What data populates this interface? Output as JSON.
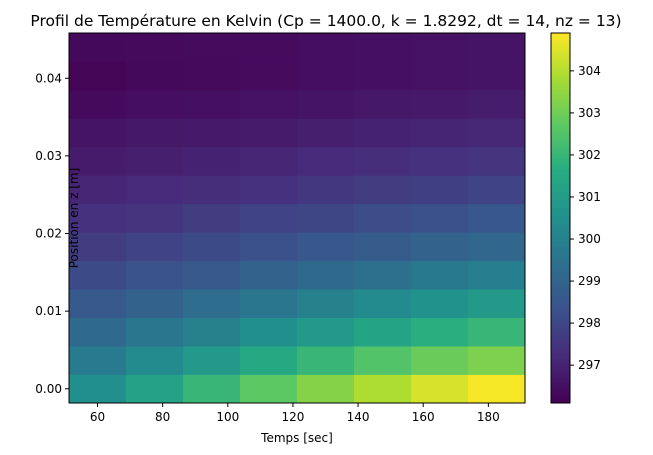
{
  "chart_data": {
    "type": "heatmap",
    "title": "Profil de Température en Kelvin (Cp = 1400.0, k = 1.8292, dt = 14, nz = 13)",
    "xlabel": "Temps [sec]",
    "ylabel": "Position en z [m]",
    "x": [
      60,
      77.5,
      95,
      112.5,
      130,
      147.5,
      165,
      182.5
    ],
    "y": [
      0.0,
      0.00367,
      0.00733,
      0.011,
      0.01467,
      0.01833,
      0.022,
      0.02567,
      0.02933,
      0.033,
      0.03667,
      0.04033,
      0.044
    ],
    "x_ticks": [
      60,
      80,
      100,
      120,
      140,
      160,
      180
    ],
    "y_ticks": [
      0.0,
      0.01,
      0.02,
      0.03,
      0.04
    ],
    "y_tick_labels": [
      "0.00",
      "0.01",
      "0.02",
      "0.03",
      "0.04"
    ],
    "xlim": [
      51.25,
      191.25
    ],
    "ylim": [
      -0.001833,
      0.045833
    ],
    "colormap": "viridis",
    "colorbar": {
      "range": [
        296.1,
        304.9
      ],
      "ticks": [
        297,
        298,
        299,
        300,
        301,
        302,
        303,
        304
      ]
    },
    "values": [
      [
        300.5,
        301.2,
        302.0,
        302.7,
        303.3,
        303.9,
        304.4,
        304.8
      ],
      [
        299.8,
        300.3,
        300.9,
        301.5,
        302.0,
        302.5,
        302.9,
        303.2
      ],
      [
        299.2,
        299.6,
        300.0,
        300.5,
        300.9,
        301.3,
        301.7,
        302.0
      ],
      [
        298.6,
        298.9,
        299.3,
        299.6,
        300.0,
        300.3,
        300.6,
        300.9
      ],
      [
        298.1,
        298.4,
        298.6,
        298.9,
        299.2,
        299.4,
        299.7,
        299.9
      ],
      [
        297.7,
        297.9,
        298.1,
        298.3,
        298.5,
        298.7,
        298.9,
        299.1
      ],
      [
        297.4,
        297.5,
        297.7,
        297.9,
        298.0,
        298.2,
        298.3,
        298.5
      ],
      [
        297.1,
        297.2,
        297.3,
        297.4,
        297.6,
        297.7,
        297.8,
        297.9
      ],
      [
        296.8,
        296.9,
        297.0,
        297.1,
        297.2,
        297.3,
        297.4,
        297.5
      ],
      [
        296.6,
        296.7,
        296.75,
        296.8,
        296.9,
        297.0,
        297.05,
        297.15
      ],
      [
        296.35,
        296.45,
        296.5,
        296.55,
        296.6,
        296.7,
        296.75,
        296.85
      ],
      [
        296.2,
        296.3,
        296.35,
        296.4,
        296.45,
        296.5,
        296.55,
        296.6
      ],
      [
        296.3,
        296.35,
        296.4,
        296.4,
        296.45,
        296.5,
        296.55,
        296.6
      ]
    ]
  }
}
